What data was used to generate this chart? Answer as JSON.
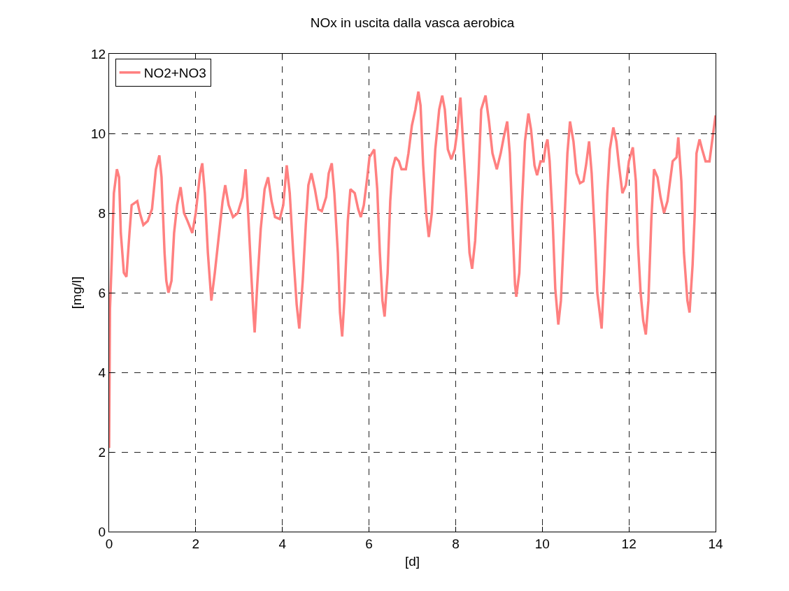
{
  "chart_data": {
    "type": "line",
    "title": "NOx in uscita dalla vasca aerobica",
    "xlabel": "[d]",
    "ylabel": "[mg/l]",
    "xlim": [
      0,
      14
    ],
    "xticks": [
      0,
      2,
      4,
      6,
      8,
      10,
      12,
      14
    ],
    "ylim": [
      0,
      12
    ],
    "yticks": [
      0,
      2,
      4,
      6,
      8,
      10,
      12
    ],
    "grid": true,
    "legend": "top left",
    "line_style": "solid",
    "marker": "none",
    "x": [
      0,
      0.02,
      0.06,
      0.11,
      0.18,
      0.23,
      0.27,
      0.34,
      0.4,
      0.47,
      0.52,
      0.65,
      0.71,
      0.79,
      0.89,
      0.99,
      1.08,
      1.16,
      1.21,
      1.28,
      1.32,
      1.37,
      1.44,
      1.5,
      1.57,
      1.65,
      1.73,
      1.81,
      1.92,
      2.0,
      2.1,
      2.15,
      2.21,
      2.28,
      2.36,
      2.44,
      2.54,
      2.62,
      2.68,
      2.76,
      2.86,
      2.97,
      3.08,
      3.15,
      3.21,
      3.28,
      3.33,
      3.36,
      3.42,
      3.5,
      3.59,
      3.67,
      3.75,
      3.83,
      3.94,
      4.02,
      4.1,
      4.17,
      4.25,
      4.33,
      4.39,
      4.47,
      4.54,
      4.6,
      4.67,
      4.75,
      4.83,
      4.91,
      5.01,
      5.07,
      5.14,
      5.2,
      5.28,
      5.33,
      5.38,
      5.43,
      5.51,
      5.57,
      5.67,
      5.75,
      5.81,
      5.88,
      5.96,
      6.01,
      6.12,
      6.19,
      6.25,
      6.31,
      6.36,
      6.43,
      6.49,
      6.54,
      6.61,
      6.69,
      6.75,
      6.85,
      6.91,
      6.99,
      7.07,
      7.14,
      7.19,
      7.25,
      7.32,
      7.38,
      7.45,
      7.53,
      7.62,
      7.69,
      7.75,
      7.82,
      7.9,
      7.98,
      8.03,
      8.11,
      8.17,
      8.24,
      8.32,
      8.38,
      8.45,
      8.53,
      8.59,
      8.69,
      8.77,
      8.85,
      8.95,
      9.04,
      9.11,
      9.19,
      9.25,
      9.32,
      9.37,
      9.4,
      9.47,
      9.53,
      9.6,
      9.68,
      9.74,
      9.82,
      9.88,
      9.96,
      10.03,
      10.08,
      10.12,
      10.17,
      10.24,
      10.3,
      10.37,
      10.43,
      10.5,
      10.58,
      10.64,
      10.72,
      10.79,
      10.87,
      10.95,
      11.01,
      11.08,
      11.14,
      11.21,
      11.27,
      11.37,
      11.43,
      11.5,
      11.56,
      11.64,
      11.71,
      11.77,
      11.85,
      11.93,
      12.0,
      12.09,
      12.16,
      12.21,
      12.27,
      12.33,
      12.39,
      12.45,
      12.52,
      12.58,
      12.66,
      12.73,
      12.81,
      12.89,
      12.95,
      13.01,
      13.1,
      13.14,
      13.21,
      13.27,
      13.35,
      13.4,
      13.47,
      13.52,
      13.56,
      13.63,
      13.69,
      13.77,
      13.86,
      13.92,
      14.0
    ],
    "series": [
      {
        "name": "NO2+NO3",
        "color": "#ff8080",
        "values": [
          2.1,
          5.6,
          6.8,
          8.5,
          9.1,
          8.9,
          7.5,
          6.5,
          6.4,
          7.5,
          8.2,
          8.3,
          8.0,
          7.7,
          7.8,
          8.1,
          9.1,
          9.45,
          8.9,
          7.0,
          6.3,
          6.0,
          6.3,
          7.5,
          8.2,
          8.65,
          8.0,
          7.8,
          7.5,
          8.0,
          9.0,
          9.25,
          8.5,
          7.0,
          5.8,
          6.5,
          7.5,
          8.3,
          8.7,
          8.2,
          7.9,
          8.0,
          8.4,
          9.1,
          8.0,
          6.5,
          5.5,
          5.0,
          6.2,
          7.6,
          8.6,
          8.9,
          8.3,
          7.9,
          7.85,
          8.2,
          9.2,
          8.5,
          7.0,
          5.7,
          5.1,
          6.3,
          7.7,
          8.7,
          9.0,
          8.6,
          8.1,
          8.05,
          8.4,
          9.0,
          9.25,
          8.5,
          7.0,
          5.5,
          4.9,
          5.8,
          7.8,
          8.6,
          8.5,
          8.1,
          7.9,
          8.2,
          8.9,
          9.4,
          9.6,
          8.6,
          7.0,
          5.8,
          5.4,
          6.5,
          8.3,
          9.1,
          9.4,
          9.3,
          9.1,
          9.1,
          9.5,
          10.2,
          10.6,
          11.05,
          10.7,
          9.2,
          8.0,
          7.4,
          8.0,
          9.6,
          10.6,
          10.95,
          10.6,
          9.6,
          9.35,
          9.6,
          10.0,
          10.9,
          9.8,
          8.6,
          7.0,
          6.6,
          7.3,
          9.0,
          10.6,
          10.95,
          10.3,
          9.5,
          9.1,
          9.5,
          9.9,
          10.3,
          9.5,
          7.5,
          6.2,
          5.9,
          6.5,
          8.2,
          9.8,
          10.5,
          10.1,
          9.2,
          8.95,
          9.3,
          9.3,
          9.7,
          9.85,
          9.3,
          7.8,
          6.1,
          5.2,
          5.8,
          7.5,
          9.5,
          10.3,
          9.8,
          9.0,
          8.75,
          8.8,
          9.2,
          9.8,
          9.0,
          7.5,
          6.0,
          5.1,
          6.5,
          8.5,
          9.6,
          10.15,
          9.8,
          9.2,
          8.5,
          8.7,
          9.3,
          9.65,
          8.8,
          7.2,
          6.0,
          5.3,
          4.95,
          5.8,
          7.9,
          9.1,
          8.9,
          8.4,
          8.0,
          8.3,
          8.8,
          9.3,
          9.4,
          9.9,
          8.8,
          7.0,
          5.8,
          5.5,
          6.7,
          8.0,
          9.5,
          9.85,
          9.6,
          9.3,
          9.3,
          9.8,
          10.45
        ]
      }
    ]
  }
}
